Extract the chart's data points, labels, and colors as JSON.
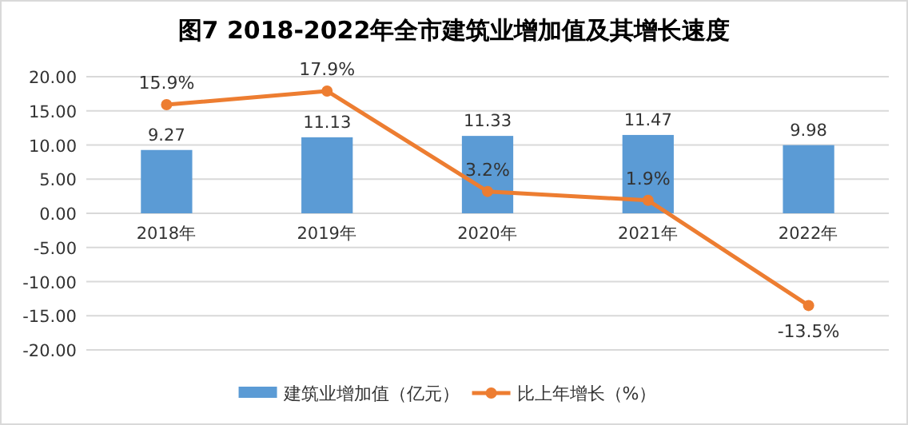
{
  "chart_data": {
    "type": "bar",
    "title": "图7  2018-2022年全市建筑业增加值及其增长速度",
    "categories": [
      "2018年",
      "2019年",
      "2020年",
      "2021年",
      "2022年"
    ],
    "series": [
      {
        "name": "建筑业增加值（亿元）",
        "color": "#5b9bd5",
        "values": [
          9.27,
          11.13,
          11.33,
          11.47,
          9.98
        ],
        "value_labels": [
          "9.27",
          "11.13",
          "11.33",
          "11.47",
          "9.98"
        ]
      },
      {
        "name": "比上年增长（%）",
        "type": "line",
        "color": "#ed7d31",
        "values": [
          15.9,
          17.9,
          3.2,
          1.9,
          -13.5
        ],
        "value_labels": [
          "15.9%",
          "17.9%",
          "3.2%",
          "1.9%",
          "-13.5%"
        ]
      }
    ],
    "ylim": [
      -20,
      20
    ],
    "yticks": [
      {
        "value": -20,
        "label": "-20.00"
      },
      {
        "value": -15,
        "label": "-15.00"
      },
      {
        "value": -10,
        "label": "-10.00"
      },
      {
        "value": -5,
        "label": "-5.00"
      },
      {
        "value": 0,
        "label": "0.00"
      },
      {
        "value": 5,
        "label": "5.00"
      },
      {
        "value": 10,
        "label": "10.00"
      },
      {
        "value": 15,
        "label": "15.00"
      },
      {
        "value": 20,
        "label": "20.00"
      }
    ],
    "grid": "y",
    "legend": "bottom",
    "marker": "circle",
    "line_style": "solid"
  }
}
